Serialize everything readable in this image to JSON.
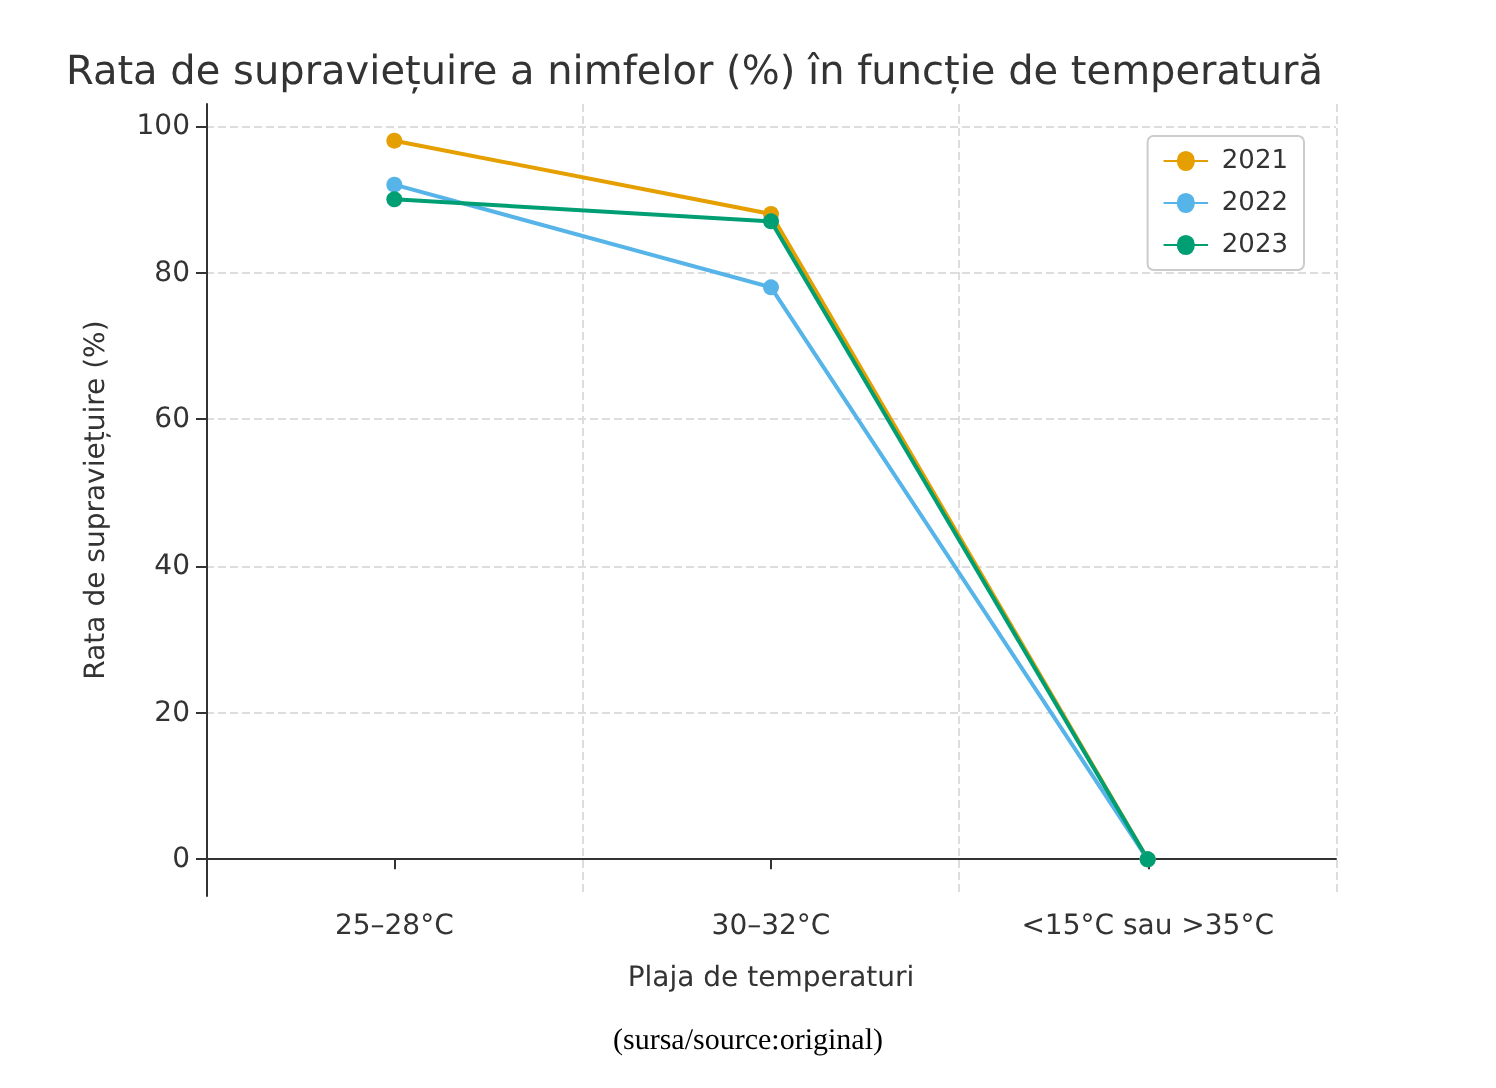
{
  "chart_data": {
    "type": "line",
    "title": "Rata de supraviețuire a nimfelor (%) în funcție de temperatură",
    "xlabel": "Plaja de temperaturi",
    "ylabel": "Rata de supraviețuire (%)",
    "categories": [
      "25–28°C",
      "30–32°C",
      "<15°C sau >35°C"
    ],
    "series": [
      {
        "name": "2021",
        "color": "#e69f00",
        "values": [
          98,
          88,
          0
        ]
      },
      {
        "name": "2022",
        "color": "#56b4e9",
        "values": [
          92,
          78,
          0
        ]
      },
      {
        "name": "2023",
        "color": "#009e73",
        "values": [
          90,
          87,
          0
        ]
      }
    ],
    "ylim": [
      -5,
      103
    ],
    "yticks": [
      0,
      20,
      40,
      60,
      80,
      100
    ],
    "grid": true,
    "legend": "top right",
    "marker": "circle",
    "line_style": "solid",
    "annotations": [
      "(sursa/source:original)"
    ]
  }
}
